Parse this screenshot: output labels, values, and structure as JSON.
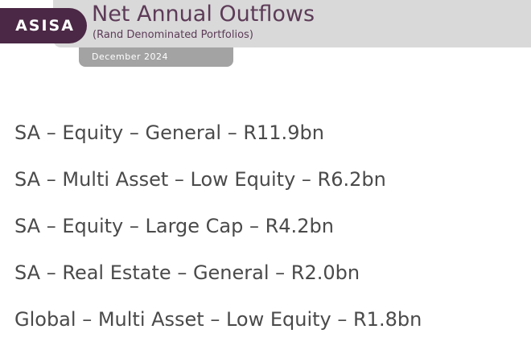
{
  "logo": {
    "text": "ASISA"
  },
  "header": {
    "title": "Net Annual Outflows",
    "subtitle": "(Rand Denominated Portfolios)",
    "date": "December 2024"
  },
  "outflows": [
    {
      "text": "SA – Equity – General – R11.9bn"
    },
    {
      "text": "SA – Multi Asset – Low Equity – R6.2bn"
    },
    {
      "text": "SA – Equity – Large Cap – R4.2bn"
    },
    {
      "text": "SA – Real Estate – General – R2.0bn"
    },
    {
      "text": "Global – Multi Asset – Low Equity – R1.8bn"
    }
  ],
  "colors": {
    "brand_purple": "#4b2845",
    "title_purple": "#5d3b58",
    "header_grey": "#d9d9d9",
    "date_grey": "#a3a3a3",
    "body_text": "#4a4a4a"
  }
}
